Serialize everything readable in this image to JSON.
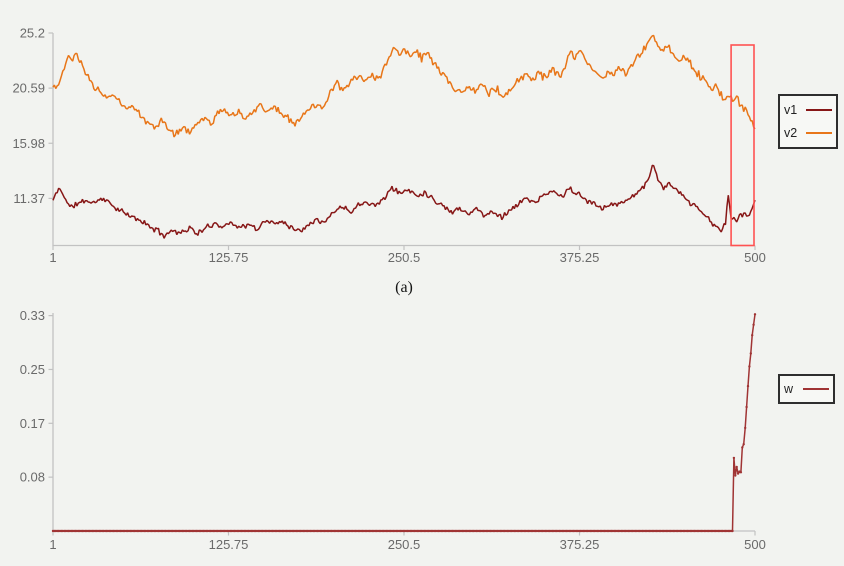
{
  "page": {
    "background": "#f2f3f0",
    "caption_a": "(a)"
  },
  "colors": {
    "axis": "#c2c2c2",
    "tick_text": "#6a6a6a",
    "caption_text": "#141414",
    "legend_border": "#2e2e2e",
    "highlight_box": "#ff5252",
    "v1": "#871717",
    "v2": "#e87619",
    "w": "#a03434"
  },
  "chart_data": [
    {
      "type": "line",
      "title": "",
      "xlabel": "",
      "ylabel": "",
      "grid": false,
      "legend_position": "right",
      "xlim": [
        1,
        500
      ],
      "ylim": [
        7.43,
        25.2
      ],
      "x_ticks": [
        {
          "v": 1,
          "label": "1"
        },
        {
          "v": 125.75,
          "label": "125.75"
        },
        {
          "v": 250.5,
          "label": "250.5"
        },
        {
          "v": 375.25,
          "label": "375.25"
        },
        {
          "v": 500,
          "label": "500"
        }
      ],
      "y_ticks": [
        {
          "v": 25.2,
          "label": "25.2"
        },
        {
          "v": 20.59,
          "label": "20.59"
        },
        {
          "v": 15.98,
          "label": "15.98"
        },
        {
          "v": 11.37,
          "label": "11.37"
        }
      ],
      "annotation_box": {
        "x0": 483,
        "x1": 499.3,
        "y0": 7.43,
        "y1": 24.2,
        "color": "#ff5252"
      },
      "series": [
        {
          "name": "v1",
          "color": "#871717",
          "noise_amp": 0.3,
          "noise_seed": 11,
          "anchors": [
            [
              1,
              11.2
            ],
            [
              5,
              12.2
            ],
            [
              9,
              11.6
            ],
            [
              13,
              10.6
            ],
            [
              18,
              10.9
            ],
            [
              24,
              11.2
            ],
            [
              30,
              11.0
            ],
            [
              36,
              11.4
            ],
            [
              42,
              10.9
            ],
            [
              48,
              10.4
            ],
            [
              55,
              9.9
            ],
            [
              62,
              9.6
            ],
            [
              70,
              9.0
            ],
            [
              76,
              8.6
            ],
            [
              80,
              8.3
            ],
            [
              86,
              8.7
            ],
            [
              92,
              8.5
            ],
            [
              98,
              8.9
            ],
            [
              104,
              8.4
            ],
            [
              110,
              8.9
            ],
            [
              116,
              9.3
            ],
            [
              122,
              9.0
            ],
            [
              128,
              9.4
            ],
            [
              134,
              8.9
            ],
            [
              140,
              9.2
            ],
            [
              146,
              8.7
            ],
            [
              152,
              9.6
            ],
            [
              158,
              9.2
            ],
            [
              164,
              9.5
            ],
            [
              170,
              9.0
            ],
            [
              176,
              8.6
            ],
            [
              182,
              9.2
            ],
            [
              188,
              9.7
            ],
            [
              194,
              9.3
            ],
            [
              200,
              10.2
            ],
            [
              206,
              10.7
            ],
            [
              212,
              10.3
            ],
            [
              218,
              10.8
            ],
            [
              224,
              11.2
            ],
            [
              230,
              10.7
            ],
            [
              236,
              11.4
            ],
            [
              242,
              12.2
            ],
            [
              248,
              11.8
            ],
            [
              254,
              12.1
            ],
            [
              260,
              11.6
            ],
            [
              266,
              11.9
            ],
            [
              272,
              11.2
            ],
            [
              278,
              10.8
            ],
            [
              284,
              10.2
            ],
            [
              290,
              10.6
            ],
            [
              296,
              10.1
            ],
            [
              302,
              10.5
            ],
            [
              308,
              9.9
            ],
            [
              314,
              10.3
            ],
            [
              320,
              9.8
            ],
            [
              326,
              10.4
            ],
            [
              332,
              10.9
            ],
            [
              338,
              11.4
            ],
            [
              344,
              11.0
            ],
            [
              350,
              11.6
            ],
            [
              356,
              12.0
            ],
            [
              362,
              11.5
            ],
            [
              368,
              12.2
            ],
            [
              374,
              11.7
            ],
            [
              380,
              11.2
            ],
            [
              386,
              10.9
            ],
            [
              392,
              10.6
            ],
            [
              398,
              11.0
            ],
            [
              404,
              10.8
            ],
            [
              410,
              11.4
            ],
            [
              416,
              11.8
            ],
            [
              421,
              12.4
            ],
            [
              425,
              13.1
            ],
            [
              428,
              14.3
            ],
            [
              431,
              12.8
            ],
            [
              435,
              12.3
            ],
            [
              439,
              12.6
            ],
            [
              443,
              12.1
            ],
            [
              447,
              11.7
            ],
            [
              451,
              11.3
            ],
            [
              455,
              10.9
            ],
            [
              459,
              10.5
            ],
            [
              463,
              10.1
            ],
            [
              467,
              9.7
            ],
            [
              470,
              9.2
            ],
            [
              473,
              8.9
            ],
            [
              476,
              8.7
            ],
            [
              479,
              9.3
            ],
            [
              481,
              11.7
            ],
            [
              483,
              9.6
            ],
            [
              485,
              9.9
            ],
            [
              487,
              9.5
            ],
            [
              489,
              10.0
            ],
            [
              491,
              9.7
            ],
            [
              493,
              10.2
            ],
            [
              495,
              9.8
            ],
            [
              497,
              10.3
            ],
            [
              499,
              10.9
            ],
            [
              500,
              11.3
            ]
          ]
        },
        {
          "name": "v2",
          "color": "#e87619",
          "noise_amp": 0.4,
          "noise_seed": 23,
          "anchors": [
            [
              1,
              21.0
            ],
            [
              4,
              20.6
            ],
            [
              8,
              21.9
            ],
            [
              12,
              23.3
            ],
            [
              15,
              22.9
            ],
            [
              18,
              23.3
            ],
            [
              22,
              22.3
            ],
            [
              26,
              21.5
            ],
            [
              30,
              20.8
            ],
            [
              34,
              20.4
            ],
            [
              38,
              19.8
            ],
            [
              43,
              20.1
            ],
            [
              48,
              19.4
            ],
            [
              53,
              18.8
            ],
            [
              58,
              19.2
            ],
            [
              63,
              18.4
            ],
            [
              68,
              17.8
            ],
            [
              73,
              17.3
            ],
            [
              78,
              17.9
            ],
            [
              83,
              17.1
            ],
            [
              88,
              16.7
            ],
            [
              93,
              17.4
            ],
            [
              98,
              16.9
            ],
            [
              103,
              17.6
            ],
            [
              108,
              18.1
            ],
            [
              113,
              17.7
            ],
            [
              118,
              18.4
            ],
            [
              123,
              18.8
            ],
            [
              128,
              18.2
            ],
            [
              133,
              18.7
            ],
            [
              138,
              18.1
            ],
            [
              143,
              18.6
            ],
            [
              148,
              19.2
            ],
            [
              153,
              18.7
            ],
            [
              158,
              19.1
            ],
            [
              163,
              18.5
            ],
            [
              168,
              18.0
            ],
            [
              173,
              17.6
            ],
            [
              178,
              18.2
            ],
            [
              183,
              18.8
            ],
            [
              188,
              19.3
            ],
            [
              193,
              18.9
            ],
            [
              198,
              20.2
            ],
            [
              203,
              20.9
            ],
            [
              208,
              20.4
            ],
            [
              213,
              21.1
            ],
            [
              218,
              21.7
            ],
            [
              223,
              21.2
            ],
            [
              228,
              21.8
            ],
            [
              233,
              21.3
            ],
            [
              238,
              22.6
            ],
            [
              243,
              24.0
            ],
            [
              247,
              23.5
            ],
            [
              251,
              23.9
            ],
            [
              255,
              23.3
            ],
            [
              259,
              23.8
            ],
            [
              263,
              23.1
            ],
            [
              267,
              23.5
            ],
            [
              271,
              22.8
            ],
            [
              275,
              22.3
            ],
            [
              279,
              21.7
            ],
            [
              283,
              21.0
            ],
            [
              287,
              20.5
            ],
            [
              291,
              20.2
            ],
            [
              296,
              20.8
            ],
            [
              301,
              20.3
            ],
            [
              306,
              20.9
            ],
            [
              311,
              20.1
            ],
            [
              316,
              20.6
            ],
            [
              321,
              19.9
            ],
            [
              326,
              20.4
            ],
            [
              331,
              21.1
            ],
            [
              336,
              21.7
            ],
            [
              341,
              21.2
            ],
            [
              346,
              21.9
            ],
            [
              351,
              21.4
            ],
            [
              356,
              22.0
            ],
            [
              361,
              21.6
            ],
            [
              365,
              22.3
            ],
            [
              369,
              23.8
            ],
            [
              372,
              23.2
            ],
            [
              376,
              23.7
            ],
            [
              380,
              22.9
            ],
            [
              384,
              22.3
            ],
            [
              388,
              21.8
            ],
            [
              392,
              21.4
            ],
            [
              396,
              22.0
            ],
            [
              400,
              21.6
            ],
            [
              404,
              22.2
            ],
            [
              408,
              21.8
            ],
            [
              412,
              22.4
            ],
            [
              416,
              23.0
            ],
            [
              420,
              23.6
            ],
            [
              424,
              24.4
            ],
            [
              427,
              25.1
            ],
            [
              430,
              24.4
            ],
            [
              434,
              23.8
            ],
            [
              438,
              24.2
            ],
            [
              442,
              23.4
            ],
            [
              446,
              22.8
            ],
            [
              450,
              23.2
            ],
            [
              454,
              22.6
            ],
            [
              458,
              22.0
            ],
            [
              462,
              21.5
            ],
            [
              466,
              21.0
            ],
            [
              469,
              20.5
            ],
            [
              472,
              20.8
            ],
            [
              475,
              20.2
            ],
            [
              478,
              19.7
            ],
            [
              481,
              20.1
            ],
            [
              484,
              19.4
            ],
            [
              487,
              19.8
            ],
            [
              490,
              19.2
            ],
            [
              493,
              18.7
            ],
            [
              496,
              18.2
            ],
            [
              498,
              17.6
            ],
            [
              500,
              17.2
            ]
          ]
        }
      ]
    },
    {
      "type": "line",
      "title": "",
      "xlabel": "",
      "ylabel": "",
      "grid": false,
      "legend_position": "right",
      "xlim": [
        1,
        500
      ],
      "ylim": [
        0,
        0.334
      ],
      "x_ticks": [
        {
          "v": 1,
          "label": "1"
        },
        {
          "v": 125.75,
          "label": "125.75"
        },
        {
          "v": 250.5,
          "label": "250.5"
        },
        {
          "v": 375.25,
          "label": "375.25"
        },
        {
          "v": 500,
          "label": "500"
        }
      ],
      "y_ticks": [
        {
          "v": 0.33,
          "label": "0.33"
        },
        {
          "v": 0.2475,
          "label": "0.25"
        },
        {
          "v": 0.165,
          "label": "0.17"
        },
        {
          "v": 0.0825,
          "label": "0.08"
        }
      ],
      "series": [
        {
          "name": "w",
          "color": "#a03434",
          "noise_amp": 0,
          "noise_seed": 1,
          "markers": true,
          "anchors": [
            [
              1,
              0
            ],
            [
              484,
              0
            ],
            [
              485,
              0.112
            ],
            [
              486,
              0.085
            ],
            [
              487,
              0.098
            ],
            [
              488,
              0.088
            ],
            [
              489,
              0.091
            ],
            [
              490,
              0.09
            ],
            [
              491,
              0.128
            ],
            [
              492,
              0.133
            ],
            [
              493,
              0.158
            ],
            [
              494,
              0.19
            ],
            [
              495,
              0.222
            ],
            [
              496,
              0.252
            ],
            [
              497,
              0.272
            ],
            [
              498,
              0.3
            ],
            [
              499,
              0.316
            ],
            [
              500,
              0.332
            ]
          ]
        }
      ]
    }
  ]
}
